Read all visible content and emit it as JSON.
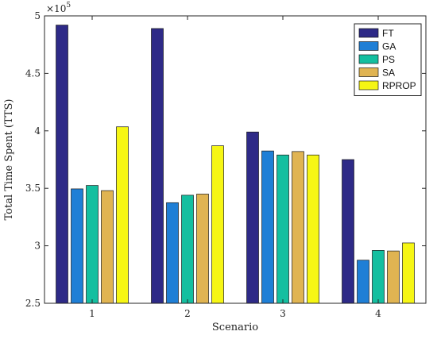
{
  "chart_data": {
    "type": "bar",
    "categories": [
      "1",
      "2",
      "3",
      "4"
    ],
    "series": [
      {
        "name": "FT",
        "color": "#2e2a87",
        "values": [
          4.92,
          4.89,
          3.99,
          3.75
        ]
      },
      {
        "name": "GA",
        "color": "#1f7fd6",
        "values": [
          3.495,
          3.375,
          3.825,
          2.875
        ]
      },
      {
        "name": "PS",
        "color": "#14bfa0",
        "values": [
          3.525,
          3.44,
          3.79,
          2.96
        ]
      },
      {
        "name": "SA",
        "color": "#e0b452",
        "values": [
          3.48,
          3.45,
          3.82,
          2.955
        ]
      },
      {
        "name": "RPROP",
        "color": "#f6f614",
        "values": [
          4.035,
          3.87,
          3.79,
          3.025
        ]
      }
    ],
    "xlabel": "Scenario",
    "ylabel": "Total Time Spent (TTS)",
    "ylim": [
      2.5,
      5
    ],
    "yticks": [
      "2.5",
      "3",
      "3.5",
      "4",
      "4.5",
      "5"
    ],
    "y_exponent_base": "×10",
    "y_exponent_power": "5",
    "legend_position": "top-right",
    "grid": false
  }
}
